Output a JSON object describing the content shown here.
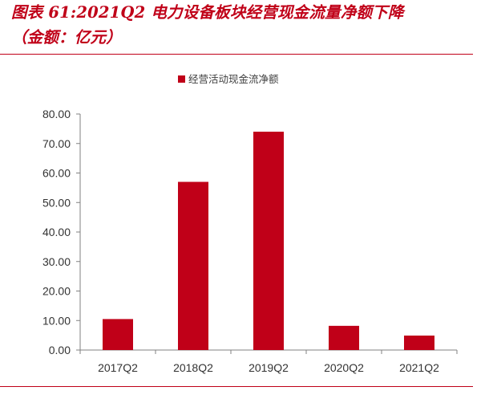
{
  "header": {
    "title_line1": "图表 61:2021Q2 电力设备板块经营现金流量净额下降",
    "title_line2": "（金额：亿元）"
  },
  "chart_data": {
    "type": "bar",
    "title": "",
    "xlabel": "",
    "ylabel": "",
    "categories": [
      "2017Q2",
      "2018Q2",
      "2019Q2",
      "2020Q2",
      "2021Q2"
    ],
    "series": [
      {
        "name": "经营活动现金流净额",
        "values": [
          10.5,
          57.0,
          74.0,
          8.2,
          4.9
        ],
        "color": "#c00018"
      }
    ],
    "ylim": [
      0,
      80
    ],
    "yticks": [
      "0.00",
      "10.00",
      "20.00",
      "30.00",
      "40.00",
      "50.00",
      "60.00",
      "70.00",
      "80.00"
    ],
    "grid": false,
    "legend_position": "top-center"
  },
  "colors": {
    "accent": "#c00018",
    "axis": "#808080",
    "text": "#333333"
  }
}
